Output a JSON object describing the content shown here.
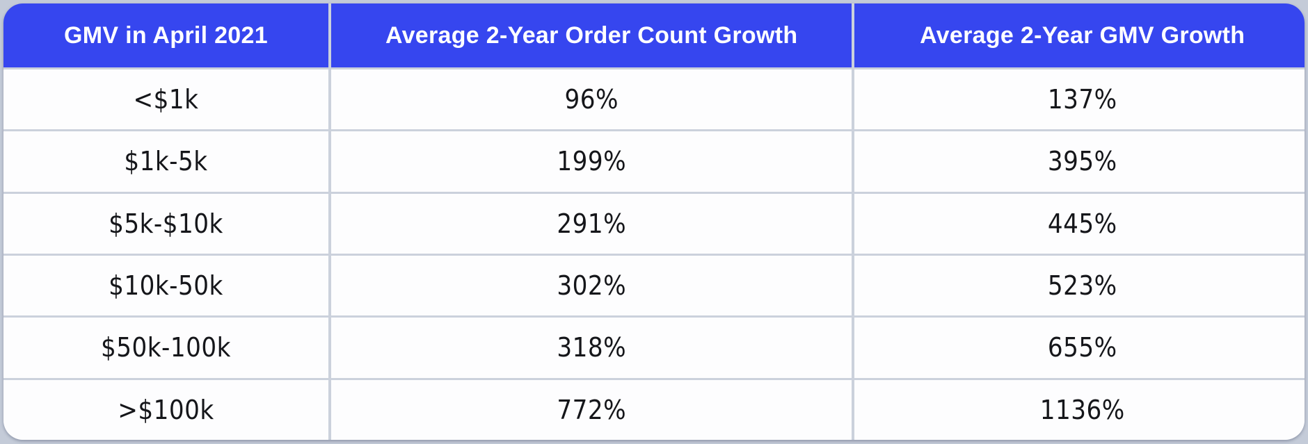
{
  "chart_data": {
    "type": "table",
    "title": "",
    "columns": [
      "GMV in April 2021",
      "Average 2-Year Order Count Growth",
      "Average 2-Year GMV Growth"
    ],
    "rows": [
      [
        "<$1k",
        "96%",
        "137%"
      ],
      [
        "$1k-5k",
        "199%",
        "395%"
      ],
      [
        "$5k-$10k",
        "291%",
        "445%"
      ],
      [
        "$10k-50k",
        "302%",
        "523%"
      ],
      [
        "$50k-100k",
        "318%",
        "655%"
      ],
      [
        ">$100k",
        "772%",
        "1136%"
      ]
    ],
    "layout_hints": {
      "header_position": "top",
      "grid": "on",
      "column_alignment": "center"
    }
  },
  "table": {
    "headers": {
      "gmv_bucket": "GMV in April 2021",
      "order_count_growth": "Average 2-Year Order Count Growth",
      "gmv_growth": "Average 2-Year GMV Growth"
    },
    "rows": [
      {
        "gmv": "<$1k",
        "orders": "96%",
        "growth": "137%"
      },
      {
        "gmv": "$1k-5k",
        "orders": "199%",
        "growth": "395%"
      },
      {
        "gmv": "$5k-$10k",
        "orders": "291%",
        "growth": "445%"
      },
      {
        "gmv": "$10k-50k",
        "orders": "302%",
        "growth": "523%"
      },
      {
        "gmv": "$50k-100k",
        "orders": "318%",
        "growth": "655%"
      },
      {
        "gmv": ">$100k",
        "orders": "772%",
        "growth": "1136%"
      }
    ]
  },
  "colors": {
    "header_background": "#3646ef",
    "header_text": "#ffffff",
    "cell_background": "#fdfdfe",
    "cell_text": "#15161a",
    "page_background": "#c4cbd8",
    "divider": "#cbd1dc"
  }
}
